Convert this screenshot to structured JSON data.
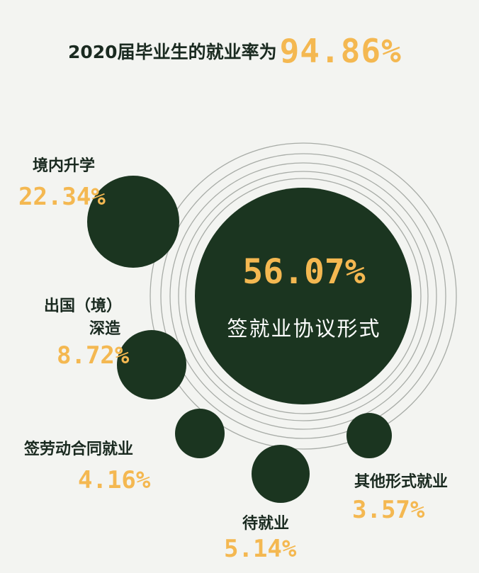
{
  "headline": {
    "text": "2020届毕业生的就业率为",
    "value": "94.86%"
  },
  "center": {
    "value": "56.07%",
    "label": "签就业协议形式"
  },
  "categories": [
    {
      "id": "domestic-study",
      "label": "境内升学",
      "value": "22.34%"
    },
    {
      "id": "study-abroad",
      "label_line1": "出国（境）",
      "label_line2": "深造",
      "value": "8.72%"
    },
    {
      "id": "labor-contract",
      "label": "签劳动合同就业",
      "value": "4.16%"
    },
    {
      "id": "pending",
      "label": "待就业",
      "value": "5.14%"
    },
    {
      "id": "other-forms",
      "label": "其他形式就业",
      "value": "3.57%"
    }
  ],
  "colors": {
    "background": "#f3f4f1",
    "circle": "#1b3520",
    "accent": "#f4b851",
    "text": "#1a2a20",
    "ring": "#a8aca7"
  }
}
